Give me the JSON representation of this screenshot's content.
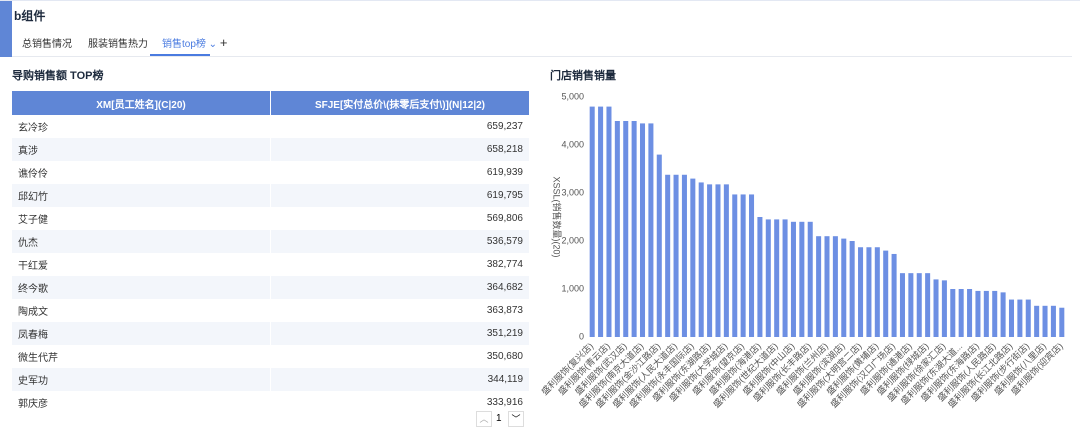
{
  "header": {
    "title": "b组件",
    "tabs": [
      "总销售情况",
      "服装销售热力",
      "销售top榜"
    ]
  },
  "table": {
    "title": "导购销售额 TOP榜",
    "columns": [
      "XM[员工姓名](C|20)",
      "SFJE[实付总价\\(抹零后支付\\)](N|12|2)"
    ],
    "rows": [
      [
        "玄冷珍",
        "659,237"
      ],
      [
        "真涉",
        "658,218"
      ],
      [
        "谯伶伶",
        "619,939"
      ],
      [
        "邱幻竹",
        "619,795"
      ],
      [
        "艾子健",
        "569,806"
      ],
      [
        "仇杰",
        "536,579"
      ],
      [
        "干红爱",
        "382,774"
      ],
      [
        "终今歌",
        "364,682"
      ],
      [
        "陶成文",
        "363,873"
      ],
      [
        "凤春梅",
        "351,219"
      ],
      [
        "微生代芹",
        "350,680"
      ],
      [
        "史军功",
        "344,119"
      ],
      [
        "郭庆彦",
        "333,916"
      ]
    ],
    "page": "1"
  },
  "chart_data": {
    "type": "bar",
    "title": "门店销售销量",
    "y_label": "XSSL(销售数量)(20)",
    "color": "#6d8fe3",
    "categories": [
      "盛利服饰(复兴店)",
      null,
      "盛利服饰(青云店)",
      null,
      "盛利服饰(武汉店)",
      null,
      "盛利服饰(南京大道店)",
      null,
      "盛利服饰(金沙江路店)",
      null,
      "盛利服饰(人民大道店)",
      null,
      "盛利服饰(永丰国际店)",
      null,
      "盛利服饰(东湖路店)",
      null,
      "盛利服饰(大学城店)",
      null,
      "盛利服饰(望京店)",
      null,
      "盛利服饰(海港店)",
      null,
      "盛利服饰(世纪大道店)",
      null,
      "盛利服饰(中山店)",
      null,
      "盛利服饰(长丰路店)",
      null,
      "盛利服饰(兰州店)",
      null,
      "盛利服饰(滨湖店)",
      null,
      "盛利服饰(大明宫二店)",
      null,
      "盛利服饰(黄埔店)",
      null,
      "盛利服饰(汉口广场店)",
      null,
      "盛利服饰(通港店)",
      null,
      "盛利服饰(绿城店)",
      null,
      "盛利服饰(徐家汇店)",
      null,
      "盛利服饰(东湖大道...",
      null,
      "盛利服饰(东海路店)",
      null,
      "盛利服饰(人民路店)",
      null,
      "盛利服饰(长江北路店)",
      null,
      "盛利服饰(步行街店)",
      null,
      "盛利服饰(八里店)",
      null,
      "盛利服饰(迎宾店)"
    ],
    "values": [
      4800,
      4800,
      4800,
      4500,
      4500,
      4500,
      4450,
      4450,
      3800,
      3380,
      3380,
      3380,
      3300,
      3220,
      3180,
      3180,
      3180,
      2970,
      2970,
      2970,
      2500,
      2450,
      2450,
      2450,
      2400,
      2400,
      2400,
      2100,
      2100,
      2100,
      2050,
      2000,
      1870,
      1870,
      1870,
      1800,
      1730,
      1330,
      1330,
      1330,
      1330,
      1200,
      1180,
      1000,
      1000,
      1000,
      960,
      960,
      960,
      930,
      780,
      780,
      780,
      650,
      650,
      650,
      610
    ],
    "ylim": [
      0,
      5000
    ],
    "yticks": [
      0,
      {
        "value": 1000,
        "label": "1,000"
      },
      {
        "value": 2000,
        "label": "2,000"
      },
      {
        "value": 3000,
        "label": "3,000"
      },
      {
        "value": 4000,
        "label": "4,000"
      },
      {
        "value": 5000,
        "label": "5,000"
      }
    ],
    "grid": false
  }
}
